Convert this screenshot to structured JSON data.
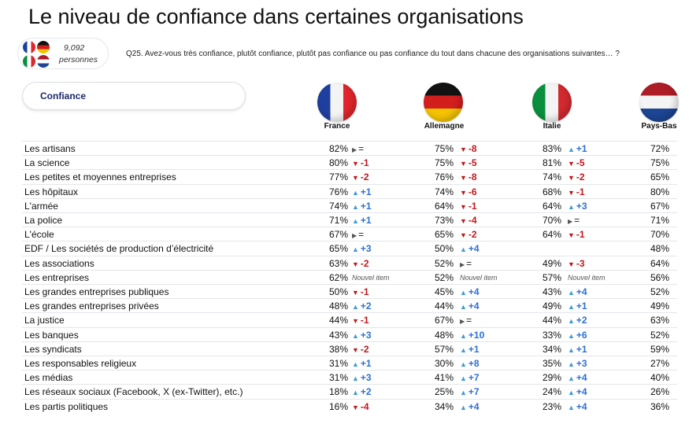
{
  "header": {
    "title": "Le niveau de confiance dans certaines organisations",
    "respondents_count": "9,092",
    "respondents_label": "personnes",
    "question": "Q25. Avez-vous très confiance, plutôt confiance, plutôt pas confiance ou pas confiance du tout dans chacune des organisations suivantes… ?",
    "filter_label": "Confiance"
  },
  "colors": {
    "up": "#3d9ad9",
    "down": "#c4161c",
    "equal": "#555555",
    "pill_text": "#1e2a6a"
  },
  "chart_data": {
    "type": "table",
    "title": "Le niveau de confiance dans certaines organisations",
    "columns": [
      "France",
      "Allemagne",
      "Italie",
      "Pays-Bas"
    ],
    "rows": [
      {
        "label": "Les artisans",
        "values": [
          {
            "pct": "82%",
            "trend": "eq",
            "text": "="
          },
          {
            "pct": "75%",
            "trend": "down",
            "text": "-8"
          },
          {
            "pct": "83%",
            "trend": "up",
            "text": "+1"
          },
          {
            "pct": "72%"
          }
        ]
      },
      {
        "label": "La science",
        "values": [
          {
            "pct": "80%",
            "trend": "down",
            "text": "-1"
          },
          {
            "pct": "75%",
            "trend": "down",
            "text": "-5"
          },
          {
            "pct": "81%",
            "trend": "down",
            "text": "-5"
          },
          {
            "pct": "75%"
          }
        ]
      },
      {
        "label": "Les petites et moyennes entreprises",
        "values": [
          {
            "pct": "77%",
            "trend": "down",
            "text": "-2"
          },
          {
            "pct": "76%",
            "trend": "down",
            "text": "-8"
          },
          {
            "pct": "74%",
            "trend": "down",
            "text": "-2"
          },
          {
            "pct": "65%"
          }
        ]
      },
      {
        "label": "Les hôpitaux",
        "values": [
          {
            "pct": "76%",
            "trend": "up",
            "text": "+1"
          },
          {
            "pct": "74%",
            "trend": "down",
            "text": "-6"
          },
          {
            "pct": "68%",
            "trend": "down",
            "text": "-1"
          },
          {
            "pct": "80%"
          }
        ]
      },
      {
        "label": "L'armée",
        "values": [
          {
            "pct": "74%",
            "trend": "up",
            "text": "+1"
          },
          {
            "pct": "64%",
            "trend": "down",
            "text": "-1"
          },
          {
            "pct": "64%",
            "trend": "up",
            "text": "+3"
          },
          {
            "pct": "67%"
          }
        ]
      },
      {
        "label": "La police",
        "values": [
          {
            "pct": "71%",
            "trend": "up",
            "text": "+1"
          },
          {
            "pct": "73%",
            "trend": "down",
            "text": "-4"
          },
          {
            "pct": "70%",
            "trend": "eq",
            "text": "="
          },
          {
            "pct": "71%"
          }
        ]
      },
      {
        "label": "L'école",
        "values": [
          {
            "pct": "67%",
            "trend": "eq",
            "text": "="
          },
          {
            "pct": "65%",
            "trend": "down",
            "text": "-2"
          },
          {
            "pct": "64%",
            "trend": "down",
            "text": "-1"
          },
          {
            "pct": "70%"
          }
        ]
      },
      {
        "label": "EDF / Les sociétés de production d’électricité",
        "values": [
          {
            "pct": "65%",
            "trend": "up",
            "text": "+3"
          },
          {
            "pct": "50%",
            "trend": "up",
            "text": "+4"
          },
          {
            "pct": ""
          },
          {
            "pct": "48%"
          }
        ]
      },
      {
        "label": "Les associations",
        "values": [
          {
            "pct": "63%",
            "trend": "down",
            "text": "-2"
          },
          {
            "pct": "52%",
            "trend": "eq",
            "text": "="
          },
          {
            "pct": "49%",
            "trend": "down",
            "text": "-3"
          },
          {
            "pct": "64%"
          }
        ]
      },
      {
        "label": "Les entreprises",
        "values": [
          {
            "pct": "62%",
            "trend": "new",
            "text": "Nouvel item"
          },
          {
            "pct": "52%",
            "trend": "new",
            "text": "Nouvel item"
          },
          {
            "pct": "57%",
            "trend": "new",
            "text": "Nouvel item"
          },
          {
            "pct": "56%"
          }
        ]
      },
      {
        "label": "Les grandes entreprises publiques",
        "values": [
          {
            "pct": "50%",
            "trend": "down",
            "text": "-1"
          },
          {
            "pct": "45%",
            "trend": "up",
            "text": "+4"
          },
          {
            "pct": "43%",
            "trend": "up",
            "text": "+4"
          },
          {
            "pct": "52%"
          }
        ]
      },
      {
        "label": "Les grandes entreprises privées",
        "values": [
          {
            "pct": "48%",
            "trend": "up",
            "text": "+2"
          },
          {
            "pct": "44%",
            "trend": "up",
            "text": "+4"
          },
          {
            "pct": "49%",
            "trend": "up",
            "text": "+1"
          },
          {
            "pct": "49%"
          }
        ]
      },
      {
        "label": "La justice",
        "values": [
          {
            "pct": "44%",
            "trend": "down",
            "text": "-1"
          },
          {
            "pct": "67%",
            "trend": "eq",
            "text": "="
          },
          {
            "pct": "44%",
            "trend": "up",
            "text": "+2"
          },
          {
            "pct": "63%"
          }
        ]
      },
      {
        "label": "Les banques",
        "values": [
          {
            "pct": "43%",
            "trend": "up",
            "text": "+3"
          },
          {
            "pct": "48%",
            "trend": "up",
            "text": "+10"
          },
          {
            "pct": "33%",
            "trend": "up",
            "text": "+6"
          },
          {
            "pct": "52%"
          }
        ]
      },
      {
        "label": "Les syndicats",
        "values": [
          {
            "pct": "38%",
            "trend": "down",
            "text": "-2"
          },
          {
            "pct": "57%",
            "trend": "up",
            "text": "+1"
          },
          {
            "pct": "34%",
            "trend": "up",
            "text": "+1"
          },
          {
            "pct": "59%"
          }
        ]
      },
      {
        "label": "Les responsables religieux",
        "values": [
          {
            "pct": "31%",
            "trend": "up",
            "text": "+1"
          },
          {
            "pct": "30%",
            "trend": "up",
            "text": "+8"
          },
          {
            "pct": "35%",
            "trend": "up",
            "text": "+3"
          },
          {
            "pct": "27%"
          }
        ]
      },
      {
        "label": "Les médias",
        "values": [
          {
            "pct": "31%",
            "trend": "up",
            "text": "+3"
          },
          {
            "pct": "41%",
            "trend": "up",
            "text": "+7"
          },
          {
            "pct": "29%",
            "trend": "up",
            "text": "+4"
          },
          {
            "pct": "40%"
          }
        ]
      },
      {
        "label": "Les réseaux sociaux (Facebook, X (ex-Twitter), etc.)",
        "values": [
          {
            "pct": "18%",
            "trend": "up",
            "text": "+2"
          },
          {
            "pct": "25%",
            "trend": "up",
            "text": "+7"
          },
          {
            "pct": "24%",
            "trend": "up",
            "text": "+4"
          },
          {
            "pct": "26%"
          }
        ]
      },
      {
        "label": "Les partis politiques",
        "values": [
          {
            "pct": "16%",
            "trend": "down",
            "text": "-4"
          },
          {
            "pct": "34%",
            "trend": "up",
            "text": "+4"
          },
          {
            "pct": "23%",
            "trend": "up",
            "text": "+4"
          },
          {
            "pct": "36%"
          }
        ]
      }
    ]
  }
}
